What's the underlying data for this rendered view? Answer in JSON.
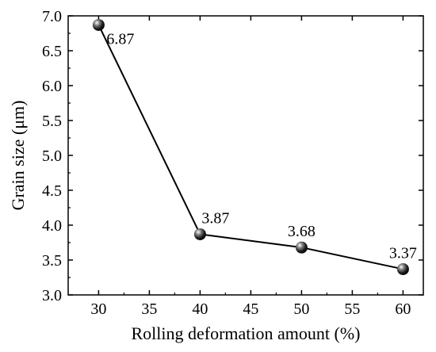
{
  "chart_data": {
    "type": "line",
    "xlabel": "Rolling deformation amount (%)",
    "ylabel": "Grain size (μm)",
    "xlim": [
      27,
      62
    ],
    "ylim": [
      3.0,
      7.0
    ],
    "xticks": [
      30,
      35,
      40,
      45,
      50,
      55,
      60
    ],
    "xtick_labels": [
      "30",
      "35",
      "40",
      "45",
      "50",
      "55",
      "60"
    ],
    "yticks": [
      3.0,
      3.5,
      4.0,
      4.5,
      5.0,
      5.5,
      6.0,
      6.5,
      7.0
    ],
    "ytick_labels": [
      "3.0",
      "3.5",
      "4.0",
      "4.5",
      "5.0",
      "5.5",
      "6.0",
      "6.5",
      "7.0"
    ],
    "grid": false,
    "legend": "none",
    "series": [
      {
        "x": [
          30,
          40,
          50,
          60
        ],
        "values": [
          6.87,
          3.87,
          3.68,
          3.37
        ],
        "labels": [
          "6.87",
          "3.87",
          "3.68",
          "3.37"
        ],
        "color": "#000000",
        "marker": "sphere"
      }
    ]
  }
}
